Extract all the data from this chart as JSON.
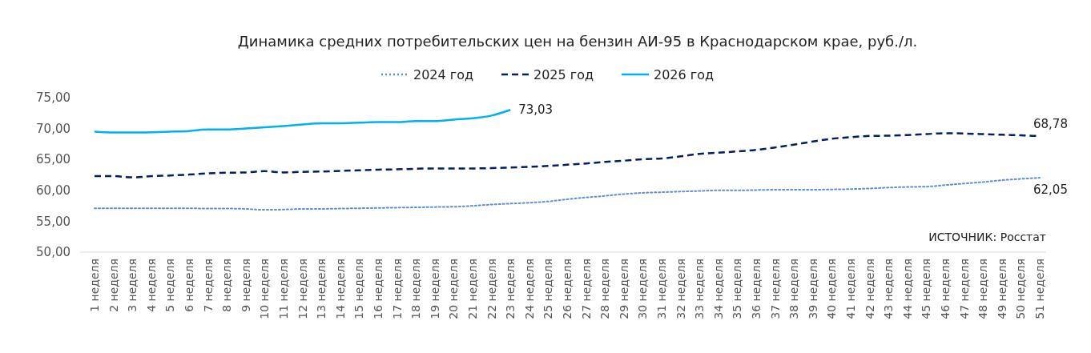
{
  "chart_data": {
    "type": "line",
    "title": "Динамика средних потребительских цен на бензин АИ-95 в Краснодарском крае, руб./л.",
    "categories": [
      "1 неделя",
      "2 неделя",
      "3 неделя",
      "4 неделя",
      "5 неделя",
      "6 неделя",
      "7 неделя",
      "8 неделя",
      "9 неделя",
      "10 неделя",
      "11 неделя",
      "12 неделя",
      "13 неделя",
      "14 неделя",
      "15 неделя",
      "16 неделя",
      "17 неделя",
      "18 неделя",
      "19 неделя",
      "20 неделя",
      "21 неделя",
      "22 неделя",
      "23 неделя",
      "24 неделя",
      "25 неделя",
      "26 неделя",
      "27 неделя",
      "28 неделя",
      "29 неделя",
      "30 неделя",
      "31 неделя",
      "32 неделя",
      "33 неделя",
      "34 неделя",
      "35 неделя",
      "36 неделя",
      "37 неделя",
      "38 неделя",
      "39 неделя",
      "40 неделя",
      "41 неделя",
      "42 неделя",
      "43 неделя",
      "44 неделя",
      "45 неделя",
      "46 неделя",
      "47 неделя",
      "48 неделя",
      "49 неделя",
      "50 неделя",
      "51 неделя"
    ],
    "series": [
      {
        "name": "2024 год",
        "color": "#5b8fd6",
        "line_style": "dotted",
        "values": [
          57.1,
          57.1,
          57.1,
          57.1,
          57.1,
          57.1,
          57.05,
          57.05,
          57.0,
          56.85,
          56.9,
          57.0,
          57.0,
          57.05,
          57.1,
          57.15,
          57.2,
          57.25,
          57.3,
          57.35,
          57.5,
          57.7,
          57.85,
          58.0,
          58.2,
          58.55,
          58.85,
          59.1,
          59.4,
          59.6,
          59.7,
          59.8,
          59.9,
          60.0,
          60.0,
          60.05,
          60.1,
          60.1,
          60.1,
          60.15,
          60.2,
          60.3,
          60.45,
          60.55,
          60.6,
          60.85,
          61.1,
          61.35,
          61.65,
          61.85,
          62.05
        ],
        "value_labels": [
          null,
          null,
          null,
          null,
          null,
          null,
          null,
          null,
          null,
          null,
          null,
          null,
          null,
          null,
          null,
          null,
          null,
          null,
          null,
          null,
          null,
          null,
          null,
          null,
          null,
          null,
          null,
          null,
          null,
          null,
          null,
          null,
          null,
          null,
          null,
          null,
          null,
          null,
          null,
          null,
          null,
          null,
          null,
          null,
          null,
          null,
          null,
          null,
          null,
          null,
          "62,05"
        ]
      },
      {
        "name": "2025 год",
        "color": "#002060",
        "line_style": "dashed",
        "values": [
          62.3,
          62.3,
          62.1,
          62.3,
          62.4,
          62.55,
          62.75,
          62.85,
          62.9,
          63.1,
          62.9,
          63.0,
          63.05,
          63.15,
          63.25,
          63.35,
          63.4,
          63.5,
          63.55,
          63.55,
          63.55,
          63.6,
          63.7,
          63.8,
          63.95,
          64.15,
          64.35,
          64.6,
          64.8,
          65.05,
          65.15,
          65.5,
          65.9,
          66.1,
          66.3,
          66.55,
          66.95,
          67.4,
          67.9,
          68.35,
          68.6,
          68.8,
          68.85,
          68.95,
          69.1,
          69.25,
          69.2,
          69.1,
          69.0,
          68.9,
          68.78
        ],
        "value_labels": [
          null,
          null,
          null,
          null,
          null,
          null,
          null,
          null,
          null,
          null,
          null,
          null,
          null,
          null,
          null,
          null,
          null,
          null,
          null,
          null,
          null,
          null,
          null,
          null,
          null,
          null,
          null,
          null,
          null,
          null,
          null,
          null,
          null,
          null,
          null,
          null,
          null,
          null,
          null,
          null,
          null,
          null,
          null,
          null,
          null,
          null,
          null,
          null,
          null,
          null,
          "68,78"
        ]
      },
      {
        "name": "2026 год",
        "color": "#00b0f0",
        "line_style": "solid",
        "values": [
          69.5,
          69.35,
          69.35,
          69.4,
          69.5,
          69.6,
          69.85,
          69.85,
          70.0,
          70.2,
          70.4,
          70.65,
          70.85,
          70.85,
          70.95,
          71.05,
          71.05,
          71.2,
          71.2,
          71.45,
          71.65,
          72.1,
          73.03,
          null,
          null,
          null,
          null,
          null,
          null,
          null,
          null,
          null,
          null,
          null,
          null,
          null,
          null,
          null,
          null,
          null,
          null,
          null,
          null,
          null,
          null,
          null,
          null,
          null,
          null,
          null,
          null
        ],
        "value_labels": [
          null,
          null,
          null,
          null,
          null,
          null,
          null,
          null,
          null,
          null,
          null,
          null,
          null,
          null,
          null,
          null,
          null,
          null,
          null,
          null,
          null,
          null,
          "73,03",
          null,
          null,
          null,
          null,
          null,
          null,
          null,
          null,
          null,
          null,
          null,
          null,
          null,
          null,
          null,
          null,
          null,
          null,
          null,
          null,
          null,
          null,
          null,
          null,
          null,
          null,
          null,
          null
        ]
      }
    ],
    "ylim": [
      50,
      75
    ],
    "yticks": [
      {
        "value": 50,
        "label": "50,00"
      },
      {
        "value": 55,
        "label": "55,00"
      },
      {
        "value": 60,
        "label": "60,00"
      },
      {
        "value": 65,
        "label": "65,00"
      },
      {
        "value": 70,
        "label": "70,00"
      },
      {
        "value": 75,
        "label": "75,00"
      }
    ],
    "grid": false,
    "legend": "top",
    "annotations": [
      "ИСТОЧНИК: Росстат"
    ]
  }
}
